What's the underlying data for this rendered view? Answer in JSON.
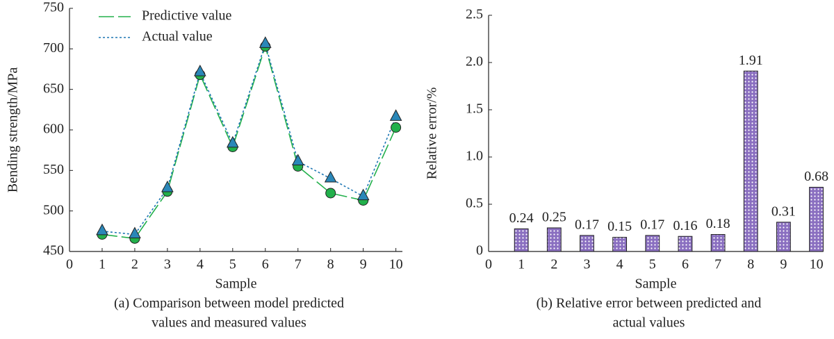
{
  "chart_data": [
    {
      "type": "line",
      "x_label": "Sample",
      "y_label": "Bending strength/MPa",
      "caption": [
        "(a) Comparison between model predicted",
        "values and measured values"
      ],
      "x": [
        1,
        2,
        3,
        4,
        5,
        6,
        7,
        8,
        9,
        10
      ],
      "series": [
        {
          "name": "Predictive value",
          "color": "#22b04b",
          "marker": "circle",
          "dash": "dashed",
          "values": [
            471,
            466,
            524,
            668,
            579,
            703,
            555,
            522,
            513,
            603
          ]
        },
        {
          "name": "Actual value",
          "color": "#1f77b4",
          "marker": "triangle",
          "dash": "dotted",
          "values": [
            475,
            471,
            528,
            671,
            583,
            706,
            561,
            540,
            518,
            616
          ]
        }
      ],
      "xlim": [
        0,
        10.2
      ],
      "xticks": [
        0,
        1,
        2,
        3,
        4,
        5,
        6,
        7,
        8,
        9,
        10
      ],
      "ylim": [
        450,
        750
      ],
      "yticks": [
        450,
        500,
        550,
        600,
        650,
        700,
        750
      ],
      "legend": "upper left"
    },
    {
      "type": "bar",
      "x_label": "Sample",
      "y_label": "Relative error/%",
      "caption": [
        "(b) Relative error between predicted and",
        "actual values"
      ],
      "x": [
        1,
        2,
        3,
        4,
        5,
        6,
        7,
        8,
        9,
        10
      ],
      "values": [
        0.24,
        0.25,
        0.17,
        0.15,
        0.17,
        0.16,
        0.18,
        1.91,
        0.31,
        0.68
      ],
      "color": "#8a6fc0",
      "xlim": [
        0,
        10.2
      ],
      "xticks": [
        0,
        1,
        2,
        3,
        4,
        5,
        6,
        7,
        8,
        9,
        10
      ],
      "ylim": [
        0,
        2.5
      ],
      "yticks": [
        0,
        0.5,
        {
          "value": 1,
          "label": "1.0"
        },
        1.5,
        {
          "value": 2,
          "label": "2.0"
        },
        2.5
      ]
    }
  ]
}
